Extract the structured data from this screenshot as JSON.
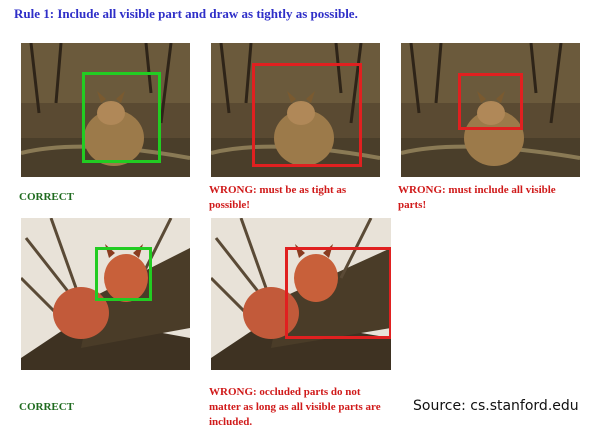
{
  "title": "Rule 1: Include all visible part and draw as tightly as possible.",
  "colors": {
    "title": "#2f2fc8",
    "correct": "#1f6b1f",
    "wrong": "#d01a1a",
    "box_green": "#22cc22",
    "box_red": "#e02020"
  },
  "examples": [
    {
      "verdict": "correct",
      "box_color": "green",
      "caption": "CORRECT"
    },
    {
      "verdict": "wrong",
      "box_color": "red",
      "caption": "WRONG: must be as tight as possible!"
    },
    {
      "verdict": "wrong",
      "box_color": "red",
      "caption": "WRONG: must include all visible parts!"
    },
    {
      "verdict": "correct",
      "box_color": "green",
      "caption": "CORRECT"
    },
    {
      "verdict": "wrong",
      "box_color": "red",
      "caption": "WRONG: occluded parts do not matter as long as all visible parts are included."
    }
  ],
  "source": "Source: cs.stanford.edu"
}
